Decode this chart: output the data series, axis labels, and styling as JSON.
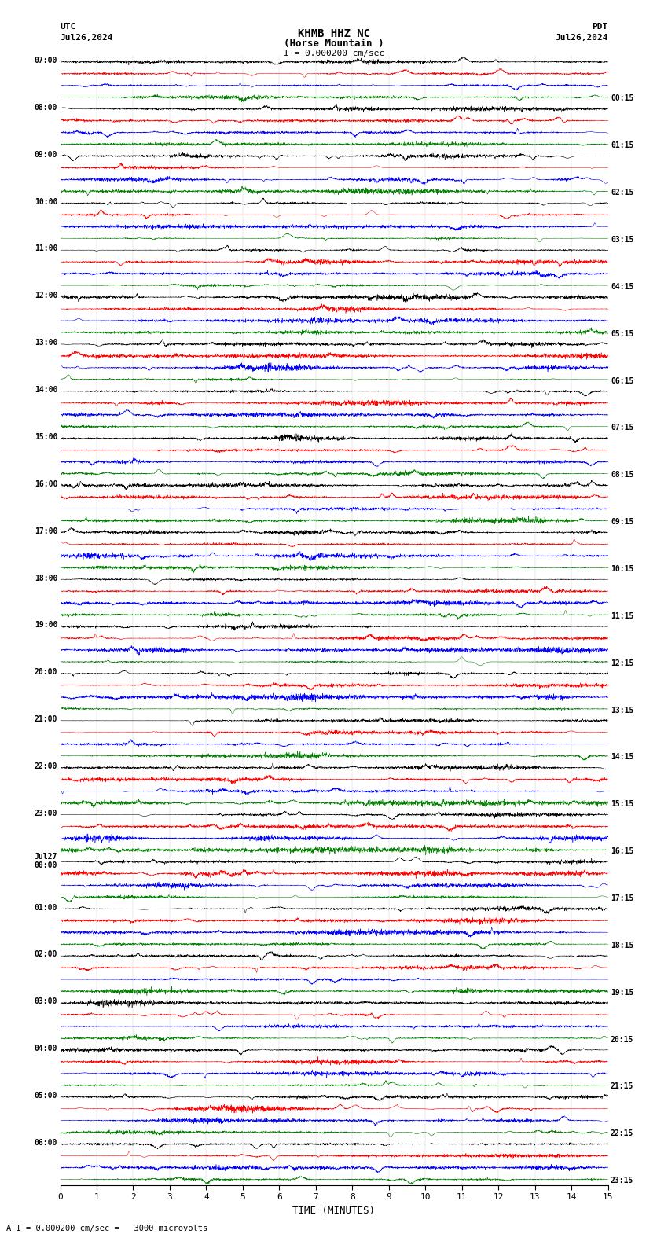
{
  "title_line1": "KHMB HHZ NC",
  "title_line2": "(Horse Mountain )",
  "scale_label": "I = 0.000200 cm/sec",
  "utc_label": "UTC",
  "pdt_label": "PDT",
  "date_left": "Jul26,2024",
  "date_right": "Jul26,2024",
  "footer_label": "A I = 0.000200 cm/sec =   3000 microvolts",
  "xlabel": "TIME (MINUTES)",
  "left_times": [
    "07:00",
    "08:00",
    "09:00",
    "10:00",
    "11:00",
    "12:00",
    "13:00",
    "14:00",
    "15:00",
    "16:00",
    "17:00",
    "18:00",
    "19:00",
    "20:00",
    "21:00",
    "22:00",
    "23:00",
    "Jul27\n00:00",
    "01:00",
    "02:00",
    "03:00",
    "04:00",
    "05:00",
    "06:00"
  ],
  "right_times": [
    "00:15",
    "01:15",
    "02:15",
    "03:15",
    "04:15",
    "05:15",
    "06:15",
    "07:15",
    "08:15",
    "09:15",
    "10:15",
    "11:15",
    "12:15",
    "13:15",
    "14:15",
    "15:15",
    "16:15",
    "17:15",
    "18:15",
    "19:15",
    "20:15",
    "21:15",
    "22:15",
    "23:15"
  ],
  "colors": [
    "black",
    "red",
    "blue",
    "green"
  ],
  "n_rows": 24,
  "traces_per_row": 4,
  "minutes": 15,
  "background_color": "white",
  "seed": 42
}
